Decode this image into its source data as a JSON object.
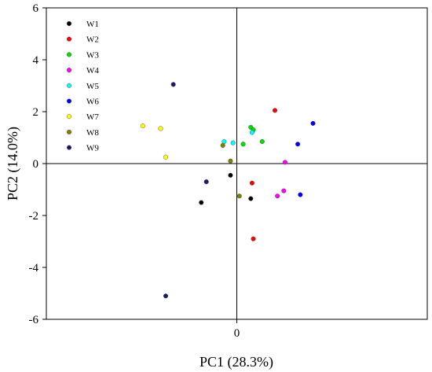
{
  "chart_data": {
    "type": "scatter",
    "xlabel": "PC1 (28.3%)",
    "ylabel": "PC2 (14.0%)",
    "xlim": [
      -7.5,
      7.5
    ],
    "ylim": [
      -6,
      6
    ],
    "x_ticks": [
      0
    ],
    "y_ticks": [
      -6,
      -4,
      -2,
      0,
      2,
      4,
      6
    ],
    "grid": false,
    "zero_lines": true,
    "legend_position": "top-left",
    "series": [
      {
        "name": "W1",
        "color": "#000000",
        "points": [
          [
            -0.25,
            -0.45
          ],
          [
            -1.4,
            -1.5
          ],
          [
            0.55,
            -1.35
          ]
        ]
      },
      {
        "name": "W2",
        "color": "#ff0000",
        "points": [
          [
            1.5,
            2.05
          ],
          [
            0.6,
            -0.75
          ],
          [
            0.65,
            -2.9
          ]
        ]
      },
      {
        "name": "W3",
        "color": "#00e000",
        "points": [
          [
            0.55,
            1.4
          ],
          [
            0.25,
            0.75
          ],
          [
            1.0,
            0.85
          ],
          [
            0.65,
            1.3
          ]
        ]
      },
      {
        "name": "W4",
        "color": "#ff00ff",
        "points": [
          [
            1.9,
            0.05
          ],
          [
            1.85,
            -1.05
          ],
          [
            1.6,
            -1.25
          ]
        ]
      },
      {
        "name": "W5",
        "color": "#00ffff",
        "points": [
          [
            -0.5,
            0.85
          ],
          [
            -0.15,
            0.8
          ],
          [
            0.6,
            1.2
          ]
        ]
      },
      {
        "name": "W6",
        "color": "#0000ff",
        "points": [
          [
            2.4,
            0.75
          ],
          [
            3.0,
            1.55
          ],
          [
            2.5,
            -1.2
          ]
        ]
      },
      {
        "name": "W7",
        "color": "#ffff00",
        "points": [
          [
            -3.7,
            1.45
          ],
          [
            -3.0,
            1.35
          ],
          [
            -2.8,
            0.25
          ]
        ]
      },
      {
        "name": "W8",
        "color": "#808000",
        "points": [
          [
            -0.55,
            0.7
          ],
          [
            -0.25,
            0.1
          ],
          [
            0.1,
            -1.25
          ]
        ]
      },
      {
        "name": "W9",
        "color": "#1a1a6e",
        "points": [
          [
            -2.5,
            3.05
          ],
          [
            -1.2,
            -0.7
          ],
          [
            -2.8,
            -5.1
          ]
        ]
      }
    ]
  }
}
